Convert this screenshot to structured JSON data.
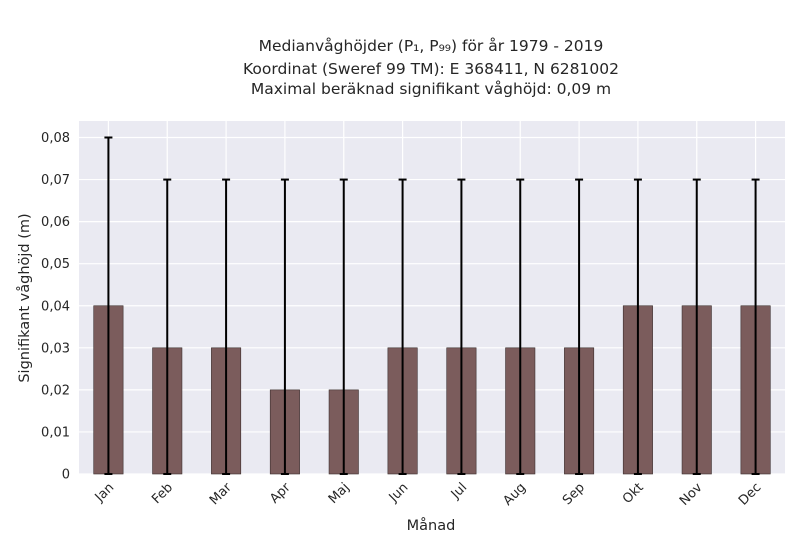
{
  "chart_data": {
    "type": "bar",
    "title_lines": [
      "Medianvåghöjder (P₁, P₉₉) för år 1979 - 2019",
      "Koordinat (Sweref 99 TM): E 368411, N 6281002",
      "Maximal beräknad signifikant våghöjd: 0,09 m"
    ],
    "xlabel": "Månad",
    "ylabel": "Signifikant våghöjd (m)",
    "categories": [
      "Jan",
      "Feb",
      "Mar",
      "Apr",
      "Maj",
      "Jun",
      "Jul",
      "Aug",
      "Sep",
      "Okt",
      "Nov",
      "Dec"
    ],
    "values": [
      0.04,
      0.03,
      0.03,
      0.02,
      0.02,
      0.03,
      0.03,
      0.03,
      0.03,
      0.04,
      0.04,
      0.04
    ],
    "error_low": [
      0,
      0,
      0,
      0,
      0,
      0,
      0,
      0,
      0,
      0,
      0,
      0
    ],
    "error_high": [
      0.08,
      0.07,
      0.07,
      0.07,
      0.07,
      0.07,
      0.07,
      0.07,
      0.07,
      0.07,
      0.07,
      0.07
    ],
    "ylim": [
      0,
      0.08
    ],
    "yticks": [
      0,
      0.01,
      0.02,
      0.03,
      0.04,
      0.05,
      0.06,
      0.07,
      0.08
    ],
    "ytick_labels": [
      "0",
      "0,01",
      "0,02",
      "0,03",
      "0,04",
      "0,05",
      "0,06",
      "0,07",
      "0,08"
    ],
    "grid": true,
    "bar_color": "#7b5c5c",
    "error_color": "#000000",
    "background_color": "#eaeaf2"
  }
}
